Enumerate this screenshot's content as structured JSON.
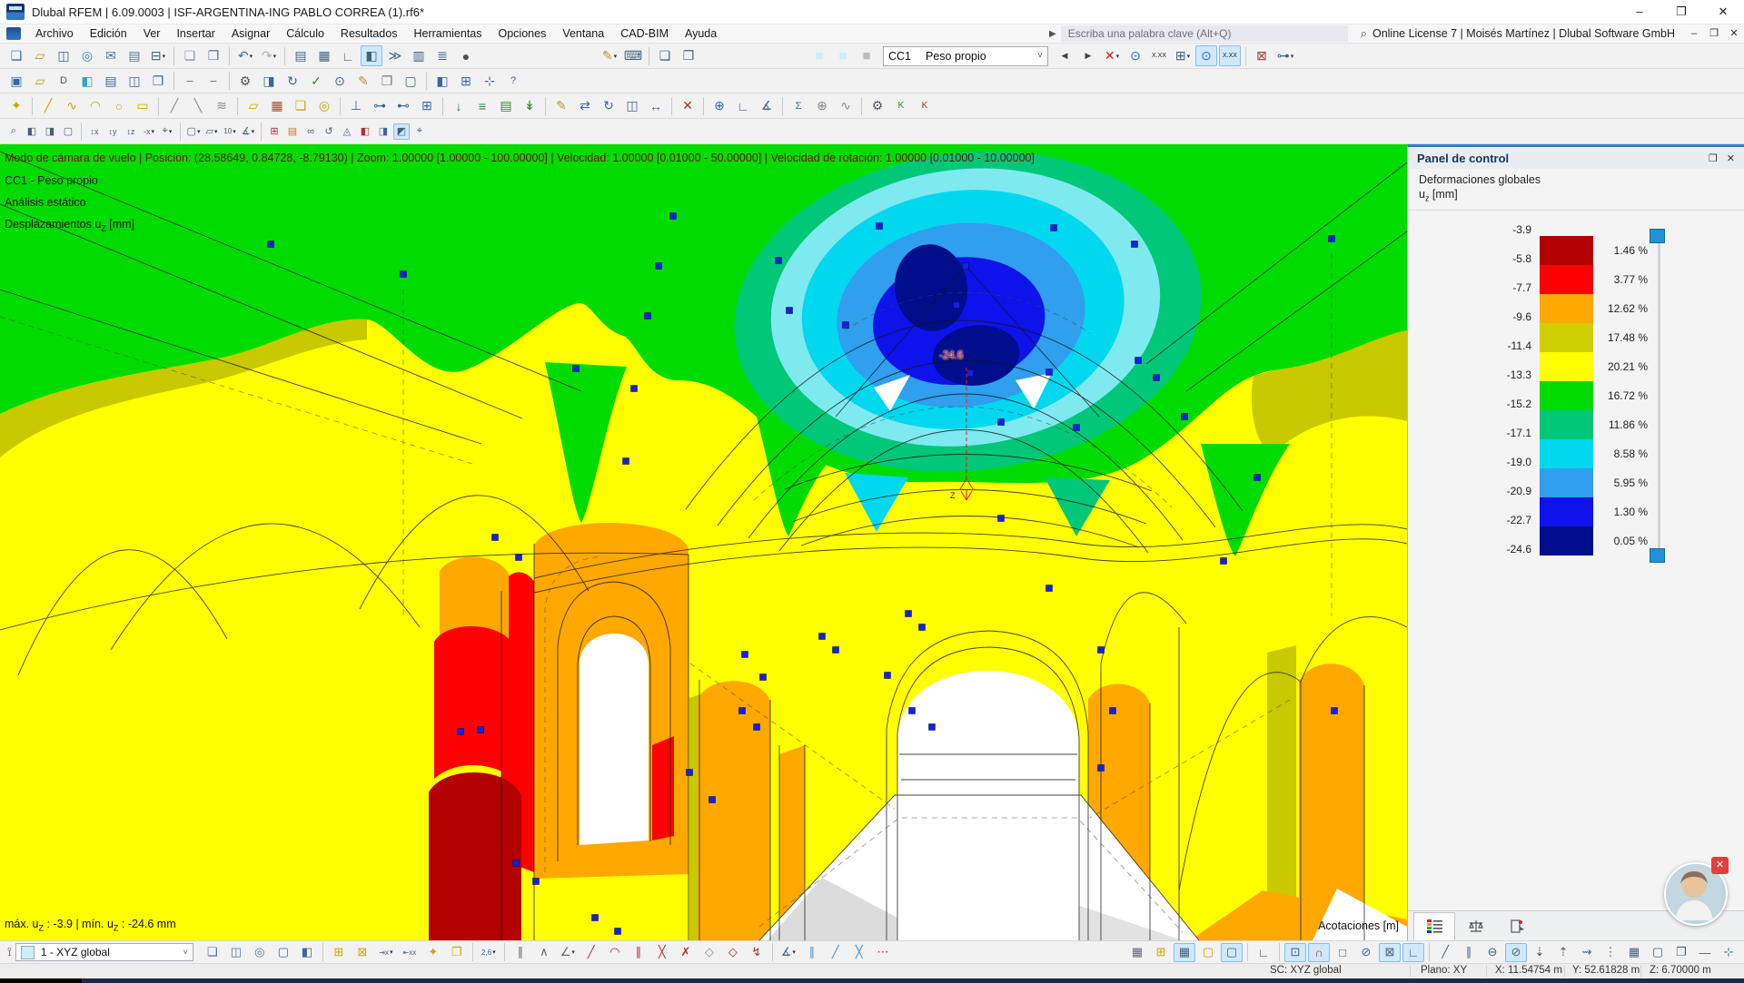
{
  "titlebar": {
    "title": "Dlubal RFEM | 6.09.0003 | ISF-ARGENTINA-ING PABLO CORREA (1).rf6*",
    "min": "–",
    "max": "❐",
    "close": "✕"
  },
  "menubar": {
    "items": [
      "Archivo",
      "Edición",
      "Ver",
      "Insertar",
      "Asignar",
      "Cálculo",
      "Resultados",
      "Herramientas",
      "Opciones",
      "Ventana",
      "CAD-BIM",
      "Ayuda"
    ],
    "search_arrow": "▶",
    "search_placeholder": "Escriba una palabra clave (Alt+Q)",
    "search_icon": "⌕",
    "license": "Online License 7 | Moisés Martínez | Dlubal Software GmbH",
    "doc_min": "‒",
    "doc_restore": "❒",
    "doc_close": "✕"
  },
  "load_case_combo": {
    "id": "CC1",
    "name": "Peso propio",
    "chevron": "˅"
  },
  "toolbars": {
    "t1a": [
      {
        "n": "new-model",
        "g": "❏",
        "c": "#3a66a0"
      },
      {
        "n": "open-model",
        "g": "▱",
        "c": "#c8962c"
      },
      {
        "n": "save-model",
        "g": "◫",
        "c": "#2f5c9e"
      },
      {
        "n": "web-service",
        "g": "◎",
        "c": "#2f86c8"
      },
      {
        "n": "send-model",
        "g": "✉",
        "c": "#5a7596"
      },
      {
        "n": "page-preview",
        "g": "▤",
        "c": "#5a7596"
      },
      {
        "n": "print",
        "g": "⊟",
        "c": "#44617e",
        "dd": true
      },
      {
        "sep": true
      },
      {
        "n": "new-from-template",
        "g": "❏",
        "c": "#8a97a8"
      },
      {
        "n": "copy-content",
        "g": "❐",
        "c": "#5a7596"
      },
      {
        "sep": true
      },
      {
        "n": "undo",
        "g": "↶",
        "c": "#3f70b0",
        "dd": true
      },
      {
        "n": "redo",
        "g": "↷",
        "c": "#9fb0c0",
        "dd": true
      },
      {
        "sep": true
      },
      {
        "n": "data-navigator",
        "g": "▤",
        "c": "#44617e"
      },
      {
        "n": "tables",
        "g": "▦",
        "c": "#44617e"
      },
      {
        "n": "drafting-tools",
        "g": "∟",
        "c": "#44617e"
      },
      {
        "n": "panel-navigator",
        "g": "◧",
        "c": "#44617e",
        "a": true
      },
      {
        "n": "console",
        "g": "≫",
        "c": "#44617e"
      },
      {
        "n": "result-tables",
        "g": "▥",
        "c": "#44617e"
      },
      {
        "n": "printout-report",
        "g": "≣",
        "c": "#44617e"
      },
      {
        "n": "rendering-mode",
        "g": "●",
        "c": "#505050"
      }
    ],
    "t1a2": [
      {
        "n": "graphic-settings",
        "g": "✎",
        "c": "#b8932a",
        "dd": true
      },
      {
        "n": "keyboard-input",
        "g": "⌨",
        "c": "#44617e"
      },
      {
        "sep": true
      },
      {
        "n": "new-window",
        "g": "❏",
        "c": "#44617e"
      },
      {
        "n": "arrange-windows",
        "g": "❐",
        "c": "#44617e"
      }
    ],
    "swatches": [
      {
        "n": "display-swatch-1",
        "g": "■",
        "c": "#cdeef6",
        "fs": 15
      },
      {
        "n": "display-swatch-2",
        "g": "■",
        "c": "#cdeef6",
        "fs": 15
      },
      {
        "n": "display-swatch-3",
        "g": "■",
        "c": "#b9bdbf",
        "fs": 15
      }
    ],
    "t1b": [
      {
        "n": "previous-load-case",
        "g": "◀",
        "c": "#444",
        "fs": 9
      },
      {
        "n": "next-load-case",
        "g": "▶",
        "c": "#444",
        "fs": 9
      },
      {
        "n": "filter-results",
        "g": "✕",
        "c": "#cc2020",
        "dd": true
      },
      {
        "n": "show-results",
        "g": "⊙",
        "c": "#2d6db0"
      },
      {
        "n": "result-values",
        "g": "X.XX",
        "fs": 7,
        "c": "#222"
      },
      {
        "n": "result-grid-values",
        "g": "⊞",
        "c": "#44617e",
        "dd": true
      },
      {
        "n": "show-deformed",
        "g": "⊙",
        "c": "#2d6db0",
        "a": true
      },
      {
        "n": "show-values-on-surfaces",
        "g": "X.XX",
        "fs": 7,
        "c": "#222",
        "a": true
      },
      {
        "sep": true
      },
      {
        "n": "exit-result-mode",
        "g": "⊠",
        "c": "#a33a3a"
      },
      {
        "n": "result-beads",
        "g": "⊶",
        "c": "#44617e",
        "dd": true
      }
    ],
    "t2": [
      {
        "n": "spelling-check",
        "g": "▣",
        "c": "#3a66a0"
      },
      {
        "n": "project-folder",
        "g": "▱",
        "c": "#c8962c"
      },
      {
        "n": "dlubal-center",
        "g": "D",
        "fs": 11,
        "c": "#2f5c9e"
      },
      {
        "n": "bim-cube",
        "g": "◧",
        "c": "#2aa8c8"
      },
      {
        "n": "model-table",
        "g": "▤",
        "c": "#3a66a0"
      },
      {
        "n": "save-all",
        "g": "◫",
        "c": "#3a66a0"
      },
      {
        "n": "duplicate-model",
        "g": "❐",
        "c": "#3a66a0"
      },
      {
        "sep": true
      },
      {
        "n": "collapse-a",
        "g": "−",
        "c": "#777"
      },
      {
        "n": "collapse-b",
        "g": "−",
        "c": "#777"
      },
      {
        "sep": true
      },
      {
        "n": "settings",
        "g": "⚙",
        "c": "#556"
      },
      {
        "n": "display-properties",
        "g": "◨",
        "c": "#3a66a0"
      },
      {
        "n": "regenerate-model",
        "g": "↻",
        "c": "#3a66a0"
      },
      {
        "n": "model-check",
        "g": "✓",
        "c": "#2a8a2a"
      },
      {
        "n": "plausibility-check",
        "g": "⊙",
        "c": "#3a66a0"
      },
      {
        "n": "notes",
        "g": "✎",
        "c": "#b8932a"
      },
      {
        "n": "clipboard",
        "g": "❐",
        "c": "#777"
      },
      {
        "n": "screenshot",
        "g": "▢",
        "c": "#3a66a0"
      },
      {
        "sep": true
      },
      {
        "n": "view-3d",
        "g": "◧",
        "c": "#3a66a0"
      },
      {
        "n": "grid-toggle",
        "g": "⊞",
        "c": "#3a66a0"
      },
      {
        "n": "axes-toggle",
        "g": "⊹",
        "c": "#3a66a0"
      },
      {
        "n": "help",
        "g": "?",
        "fs": 11,
        "c": "#3a66a0"
      }
    ],
    "t3": [
      {
        "n": "new-node",
        "g": "✦",
        "c": "#caa50a"
      },
      {
        "sep": true
      },
      {
        "n": "new-line",
        "g": "╱",
        "c": "#caa50a"
      },
      {
        "n": "new-polyline",
        "g": "∿",
        "c": "#caa50a"
      },
      {
        "n": "new-arc",
        "g": "◠",
        "c": "#caa50a"
      },
      {
        "n": "new-circle",
        "g": "○",
        "c": "#caa50a"
      },
      {
        "n": "new-rectangle",
        "g": "▭",
        "c": "#caa50a"
      },
      {
        "sep": true
      },
      {
        "n": "new-member",
        "g": "╱",
        "c": "#8a8a8a"
      },
      {
        "n": "new-rib",
        "g": "╲",
        "c": "#8a8a8a"
      },
      {
        "n": "new-member-set",
        "g": "≋",
        "c": "#8a8a8a"
      },
      {
        "sep": true
      },
      {
        "n": "new-surface",
        "g": "▱",
        "c": "#caa50a"
      },
      {
        "n": "new-solid",
        "g": "▦",
        "c": "#a05030"
      },
      {
        "n": "new-opening",
        "g": "❏",
        "c": "#caa50a"
      },
      {
        "n": "new-thickness",
        "g": "◎",
        "c": "#caa50a"
      },
      {
        "sep": true
      },
      {
        "n": "new-nodal-support",
        "g": "⊥",
        "c": "#3a66a0"
      },
      {
        "n": "new-line-support",
        "g": "⊶",
        "c": "#3a66a0"
      },
      {
        "n": "new-member-hinge",
        "g": "⊷",
        "c": "#3a66a0"
      },
      {
        "n": "new-mesh-refinement",
        "g": "⊞",
        "c": "#3a66a0"
      },
      {
        "sep": true
      },
      {
        "n": "new-nodal-load",
        "g": "↓",
        "c": "#2a8a2a"
      },
      {
        "n": "new-line-load",
        "g": "≡",
        "c": "#2a8a2a"
      },
      {
        "n": "new-surface-load",
        "g": "▤",
        "c": "#2a8a2a"
      },
      {
        "n": "new-free-load",
        "g": "↡",
        "c": "#2a8a2a"
      },
      {
        "sep": true
      },
      {
        "n": "edit-object",
        "g": "✎",
        "c": "#b8932a"
      },
      {
        "n": "move-copy",
        "g": "⇄",
        "c": "#3a66a0"
      },
      {
        "n": "rotate-object",
        "g": "↻",
        "c": "#3a66a0"
      },
      {
        "n": "mirror-object",
        "g": "◫",
        "c": "#3a66a0"
      },
      {
        "n": "scale-object",
        "g": "↔",
        "c": "#3a66a0"
      },
      {
        "sep": true
      },
      {
        "n": "delete-object",
        "g": "✕",
        "c": "#b03030"
      },
      {
        "sep": true
      },
      {
        "n": "renumber",
        "g": "⊕",
        "c": "#3a66a0"
      },
      {
        "n": "measure",
        "g": "∟",
        "c": "#3a66a0"
      },
      {
        "n": "section-cut",
        "g": "∡",
        "c": "#3a66a0"
      },
      {
        "sep": true
      },
      {
        "n": "load-cases-manager",
        "g": "Σ",
        "fs": 11,
        "c": "#3a66a0"
      },
      {
        "n": "combinations",
        "g": "⊕",
        "c": "#8a8a8a"
      },
      {
        "n": "imperfections",
        "g": "∿",
        "c": "#8a8a8a"
      },
      {
        "sep": true
      },
      {
        "n": "calculate-all",
        "g": "⚙",
        "c": "#556"
      },
      {
        "n": "check-results",
        "g": "K",
        "fs": 10,
        "c": "#2a8a2a"
      },
      {
        "n": "check-warnings",
        "g": "K",
        "fs": 10,
        "c": "#b03030"
      }
    ],
    "t4": [
      {
        "n": "zoom",
        "g": "⌕",
        "c": "#3a66a0",
        "sm": true
      },
      {
        "n": "view-isometric",
        "g": "◧",
        "sm": true
      },
      {
        "n": "view-solid",
        "g": "◨",
        "sm": true
      },
      {
        "n": "view-wireframe",
        "g": "▢",
        "sm": true
      },
      {
        "sep": true
      },
      {
        "n": "view-x",
        "g": "↕x",
        "fs": 9,
        "sm": true
      },
      {
        "n": "view-y",
        "g": "↕y",
        "fs": 9,
        "sm": true
      },
      {
        "n": "view-z",
        "g": "↕z",
        "fs": 9,
        "sm": true
      },
      {
        "n": "view-minus-x",
        "g": "-x",
        "fs": 9,
        "sm": true,
        "dd": true
      },
      {
        "n": "microscope",
        "g": "⌖",
        "sm": true,
        "dd": true
      },
      {
        "sep": true
      },
      {
        "n": "visibility-box",
        "g": "▢",
        "sm": true,
        "dd": true
      },
      {
        "n": "work-plane",
        "g": "▱",
        "sm": true,
        "dd": true
      },
      {
        "n": "dimension-lines",
        "g": "10",
        "fs": 8,
        "sm": true,
        "dd": true
      },
      {
        "n": "section-view",
        "g": "∡",
        "sm": true,
        "dd": true
      },
      {
        "sep": true
      },
      {
        "n": "mesh-points",
        "g": "⊞",
        "c": "#b03030",
        "sm": true
      },
      {
        "n": "fe-mesh",
        "g": "▤",
        "c": "#c87820",
        "sm": true
      },
      {
        "n": "link-chain",
        "g": "∞",
        "sm": true
      },
      {
        "n": "rotate-view",
        "g": "↺",
        "sm": true
      },
      {
        "n": "projection",
        "g": "◬",
        "sm": true
      },
      {
        "n": "clip-plane-x",
        "g": "◧",
        "c": "#b03030",
        "sm": true
      },
      {
        "n": "clip-plane-y",
        "g": "◨",
        "c": "#3a66a0",
        "sm": true
      },
      {
        "n": "clip-plane-z",
        "g": "◩",
        "sm": true,
        "a": true
      },
      {
        "n": "center-view",
        "g": "⌖",
        "sm": true
      }
    ],
    "bleft": [
      {
        "n": "edit-selection",
        "g": "❏",
        "c": "#3a66a0"
      },
      {
        "n": "delete-objects",
        "g": "◫",
        "c": "#5a7596"
      },
      {
        "n": "extrude-object",
        "g": "◎",
        "c": "#5a7596"
      },
      {
        "n": "select-box",
        "g": "▢",
        "c": "#3a66a0"
      },
      {
        "n": "select-layers",
        "g": "◧",
        "c": "#3a66a0"
      },
      {
        "sep": true
      },
      {
        "n": "generate-grid",
        "g": "⊞",
        "c": "#caa50a"
      },
      {
        "n": "generate-grid-2",
        "g": "⊠",
        "c": "#caa50a"
      },
      {
        "n": "dimension-x",
        "g": "⇥x",
        "fs": 8,
        "dd": true
      },
      {
        "n": "dimension-xx",
        "g": "⇤xx",
        "fs": 8
      },
      {
        "n": "fix-object",
        "g": "✦",
        "c": "#caa50a"
      },
      {
        "n": "paste-window",
        "g": "❐",
        "c": "#caa50a"
      },
      {
        "sep": true
      },
      {
        "n": "numbering-order",
        "g": "2,6",
        "fs": 8,
        "c": "#2a5fa8",
        "dd": true
      }
    ],
    "bmid": [
      {
        "sep": true
      },
      {
        "n": "guide-lines",
        "g": "∥",
        "c": "#666"
      },
      {
        "n": "guide-fan",
        "g": "∧",
        "c": "#666"
      },
      {
        "n": "angle-guide",
        "g": "∠",
        "c": "#666",
        "dd": true
      },
      {
        "n": "draw-line",
        "g": "╱",
        "c": "#b03030"
      },
      {
        "n": "draw-arc",
        "g": "◠",
        "c": "#b03030"
      },
      {
        "n": "draw-parallel",
        "g": "∥",
        "c": "#b03030"
      },
      {
        "n": "draw-cross",
        "g": "╳",
        "c": "#b03030"
      },
      {
        "n": "draw-x",
        "g": "✗",
        "c": "#b03030"
      },
      {
        "n": "draw-polygon",
        "g": "◇",
        "c": "#888"
      },
      {
        "n": "draw-polygon-red",
        "g": "◇",
        "c": "#b03030"
      },
      {
        "n": "draw-zigzag",
        "g": "↯",
        "c": "#b03030"
      },
      {
        "sep": true
      },
      {
        "n": "dimension-angle",
        "g": "∡",
        "c": "#44617e",
        "dd": true
      },
      {
        "n": "hatch-lines",
        "g": "∥",
        "c": "#3a8fd0"
      },
      {
        "n": "line-blue",
        "g": "╱",
        "c": "#3a8fd0"
      },
      {
        "n": "cross-blue",
        "g": "╳",
        "c": "#3a8fd0"
      },
      {
        "n": "points-red",
        "g": "⋯",
        "c": "#b03030"
      }
    ],
    "bright": [
      {
        "n": "grid-display",
        "g": "▦",
        "c": "#667"
      },
      {
        "n": "grid-new",
        "g": "⊞",
        "c": "#caa50a"
      },
      {
        "n": "grid-visibility",
        "g": "▦",
        "a": true
      },
      {
        "n": "frame-new",
        "g": "▢",
        "c": "#caa50a"
      },
      {
        "n": "frame-visibility",
        "g": "▢",
        "a": true
      },
      {
        "sep": true
      },
      {
        "n": "work-plane-corner",
        "g": "∟",
        "c": "#44617e"
      },
      {
        "sep": true
      },
      {
        "n": "snap-grid",
        "g": "⊡",
        "a": true
      },
      {
        "n": "snap-magnet",
        "g": "∩",
        "c": "#b03030",
        "a": true
      },
      {
        "n": "snap-endpoint",
        "g": "□"
      },
      {
        "n": "snap-center",
        "g": "⊘"
      },
      {
        "n": "snap-intersection",
        "g": "⊠",
        "a": true
      },
      {
        "n": "snap-perpendicular",
        "g": "∟",
        "a": true
      },
      {
        "sep": true
      },
      {
        "n": "snap-line",
        "g": "╱"
      },
      {
        "n": "snap-parallel",
        "g": "∥"
      },
      {
        "n": "snap-tangent",
        "g": "⊖"
      },
      {
        "n": "snap-ellipse",
        "g": "⊘",
        "a": true
      },
      {
        "n": "snap-down",
        "g": "⇣"
      },
      {
        "n": "snap-up",
        "g": "⇡"
      },
      {
        "n": "snap-free",
        "g": "⇝"
      },
      {
        "n": "snap-points",
        "g": "⋮"
      },
      {
        "n": "grid-settings",
        "g": "▦"
      },
      {
        "n": "frame-settings",
        "g": "▢"
      },
      {
        "n": "layers",
        "g": "❐"
      },
      {
        "n": "ruler",
        "g": "―"
      },
      {
        "n": "pin-view",
        "g": "⊹"
      }
    ]
  },
  "viewport": {
    "overlay_line1": "Modo de cámara de vuelo | Posición: (28.58649, 0.84728, -8.79130) | Zoom: 1.00000 [1.00000 - 100.00000] | Velocidad: 1.00000 [0.01000 - 50.00000] | Velocidad de rotación: 1.00000 [0.01000 - 10.00000]",
    "overlay_line2": "CC1 - Peso propio",
    "overlay_line3": "Análisis estático",
    "overlay_line4_pre": "Desplazamientos u",
    "overlay_line4_sub": "Z",
    "overlay_line4_post": " [mm]",
    "minmax_p1": "máx. u",
    "minmax_s1": "Z",
    "minmax_p2": " : -3.9 | mín. u",
    "minmax_s2": "Z",
    "minmax_p3": " : -24.6 mm",
    "dim_label": "Acotaciones [m]",
    "node_value_label": "-24.6",
    "colors": {
      "green": "#00dc00",
      "yellow": "#ffff00",
      "olive": "#c9c900",
      "teal": "#00c878",
      "palecyan": "#7fe9f0",
      "cyan": "#00d8f0",
      "lightblue": "#2f9fee",
      "blue": "#0d13ea",
      "navy": "#000d8c",
      "orange": "#ffa800",
      "red": "#ff0000",
      "darkred": "#b30000",
      "node": "#1520e0"
    }
  },
  "panel": {
    "title": "Panel de control",
    "float_icon": "❐",
    "close_icon": "✕",
    "subtitle1": "Deformaciones globales",
    "subtitle2_pre": "u",
    "subtitle2_sub": "z",
    "subtitle2_post": " [mm]",
    "scale": {
      "values": [
        "-3.9",
        "-5.8",
        "-7.7",
        "-9.6",
        "-11.4",
        "-13.3",
        "-15.2",
        "-17.1",
        "-19.0",
        "-20.9",
        "-22.7",
        "-24.6"
      ],
      "bands": [
        {
          "color": "#b30000",
          "pct": "1.46 %"
        },
        {
          "color": "#ff0000",
          "pct": "3.77 %"
        },
        {
          "color": "#ffa800",
          "pct": "12.62 %"
        },
        {
          "color": "#cfcf00",
          "pct": "17.48 %"
        },
        {
          "color": "#ffff00",
          "pct": "20.21 %"
        },
        {
          "color": "#00dc00",
          "pct": "16.72 %"
        },
        {
          "color": "#00c878",
          "pct": "11.86 %"
        },
        {
          "color": "#00d8f0",
          "pct": "8.58 %"
        },
        {
          "color": "#2f9fee",
          "pct": "5.95 %"
        },
        {
          "color": "#0d13ea",
          "pct": "1.30 %"
        },
        {
          "color": "#000d8c",
          "pct": "0.05 %"
        }
      ]
    },
    "chat_close": "✕"
  },
  "bottombar": {
    "cs_icon": "⟟",
    "cs_combo": {
      "label": "1 - XYZ global",
      "chevron": "˅"
    }
  },
  "statusbar": {
    "sc": "SC: XYZ global",
    "plane": "Plano: XY",
    "x": "X: 11.54754 m",
    "y": "Y: 52.61828 m",
    "z": "Z: 6.70000 m"
  }
}
